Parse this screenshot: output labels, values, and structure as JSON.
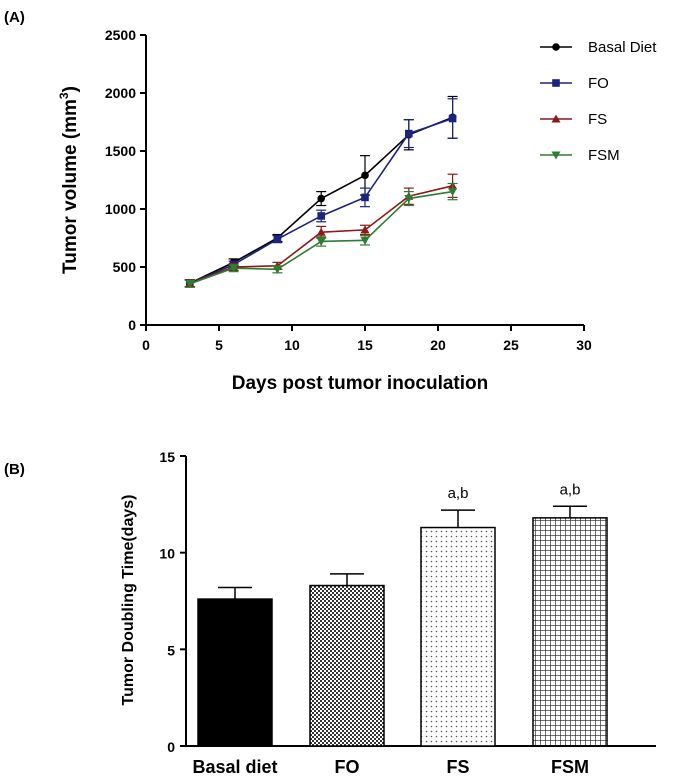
{
  "panels": {
    "a_label": "(A)",
    "b_label": "(B)"
  },
  "chart_data": [
    {
      "type": "line",
      "xlabel": "Days post tumor inoculation",
      "ylabel": "Tumor volume (mm",
      "ylabel_sup": "3",
      "ylabel_close": ")",
      "xlim": [
        0,
        30
      ],
      "ylim": [
        0,
        2500
      ],
      "x_ticks": [
        "0",
        "5",
        "10",
        "15",
        "20",
        "25",
        "30"
      ],
      "y_ticks": [
        "0",
        "500",
        "1000",
        "1500",
        "2000",
        "2500"
      ],
      "x": [
        3,
        6,
        9,
        12,
        15,
        18,
        21
      ],
      "series": [
        {
          "name": "Basal Diet",
          "marker": "circle",
          "color": "#000000",
          "values": [
            360,
            540,
            750,
            1090,
            1290,
            1640,
            1790
          ],
          "errors": [
            30,
            30,
            30,
            60,
            170,
            130,
            180
          ]
        },
        {
          "name": "FO",
          "marker": "square",
          "color": "#1a237e",
          "values": [
            360,
            520,
            740,
            940,
            1100,
            1650,
            1780
          ],
          "errors": [
            30,
            30,
            30,
            50,
            80,
            120,
            170
          ]
        },
        {
          "name": "FS",
          "marker": "triangle-up",
          "color": "#8b1a1a",
          "values": [
            360,
            500,
            510,
            800,
            820,
            1110,
            1200
          ],
          "errors": [
            30,
            30,
            30,
            50,
            40,
            70,
            100
          ]
        },
        {
          "name": "FSM",
          "marker": "triangle-down",
          "color": "#2e7d32",
          "values": [
            355,
            490,
            480,
            720,
            730,
            1090,
            1150
          ],
          "errors": [
            30,
            30,
            30,
            40,
            40,
            60,
            70
          ]
        }
      ]
    },
    {
      "type": "bar",
      "ylabel": "Tumor Doubling Time(days)",
      "ylim": [
        0,
        15
      ],
      "y_ticks": [
        "0",
        "5",
        "10",
        "15"
      ],
      "categories": [
        "Basal diet",
        "FO",
        "FS",
        "FSM"
      ],
      "values": [
        7.6,
        8.3,
        11.3,
        11.8
      ],
      "errors": [
        0.6,
        0.6,
        0.9,
        0.6
      ],
      "patterns": [
        "solid",
        "checker",
        "dots",
        "grid"
      ],
      "annotations": [
        "",
        "",
        "a,b",
        "a,b"
      ]
    }
  ]
}
